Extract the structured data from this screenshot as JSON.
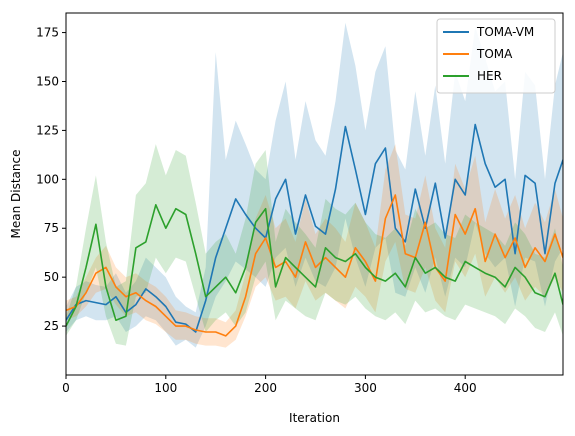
{
  "chart_data": {
    "type": "line",
    "title": "",
    "xlabel": "Iteration",
    "ylabel": "Mean Distance",
    "xlim": [
      0,
      498
    ],
    "ylim": [
      0,
      185
    ],
    "x_ticks": [
      0,
      100,
      200,
      300,
      400
    ],
    "y_ticks": [
      25,
      50,
      75,
      100,
      125,
      150,
      175
    ],
    "grid": false,
    "legend_position": "top-right",
    "series": [
      {
        "name": "TOMA-VM",
        "color": "#1f77b4",
        "x": [
          0,
          10,
          20,
          30,
          40,
          50,
          60,
          70,
          80,
          90,
          100,
          110,
          120,
          130,
          140,
          150,
          160,
          170,
          180,
          190,
          200,
          210,
          220,
          230,
          240,
          250,
          260,
          270,
          280,
          290,
          300,
          310,
          320,
          330,
          340,
          350,
          360,
          370,
          380,
          390,
          400,
          410,
          420,
          430,
          440,
          450,
          460,
          470,
          480,
          490,
          498
        ],
        "y": [
          28,
          36,
          38,
          37,
          36,
          40,
          32,
          36,
          44,
          40,
          35,
          27,
          26,
          22,
          38,
          60,
          75,
          90,
          82,
          75,
          70,
          90,
          100,
          72,
          92,
          76,
          72,
          95,
          127,
          105,
          82,
          108,
          116,
          75,
          68,
          95,
          75,
          98,
          70,
          100,
          92,
          128,
          108,
          96,
          100,
          62,
          102,
          98,
          62,
          98,
          110
        ],
        "lower": [
          22,
          28,
          30,
          28,
          28,
          30,
          22,
          25,
          30,
          28,
          22,
          15,
          18,
          14,
          25,
          40,
          48,
          58,
          54,
          50,
          45,
          60,
          65,
          45,
          60,
          48,
          45,
          55,
          80,
          60,
          45,
          65,
          70,
          42,
          40,
          55,
          42,
          60,
          40,
          60,
          55,
          78,
          62,
          55,
          60,
          35,
          60,
          58,
          35,
          58,
          65
        ],
        "upper": [
          35,
          45,
          48,
          46,
          45,
          52,
          42,
          48,
          60,
          55,
          50,
          40,
          35,
          32,
          55,
          165,
          110,
          130,
          118,
          105,
          100,
          130,
          150,
          110,
          140,
          120,
          112,
          140,
          180,
          158,
          125,
          155,
          168,
          115,
          105,
          145,
          112,
          148,
          108,
          155,
          140,
          178,
          162,
          145,
          150,
          100,
          155,
          148,
          100,
          148,
          165
        ]
      },
      {
        "name": "TOMA",
        "color": "#ff7f0e",
        "x": [
          0,
          10,
          20,
          30,
          40,
          50,
          60,
          70,
          80,
          90,
          100,
          110,
          120,
          130,
          140,
          150,
          160,
          170,
          180,
          190,
          200,
          210,
          220,
          230,
          240,
          250,
          260,
          270,
          280,
          290,
          300,
          310,
          320,
          330,
          340,
          350,
          360,
          370,
          380,
          390,
          400,
          410,
          420,
          430,
          440,
          450,
          460,
          470,
          480,
          490,
          498
        ],
        "y": [
          33,
          35,
          42,
          52,
          55,
          45,
          40,
          42,
          38,
          35,
          30,
          25,
          25,
          23,
          22,
          22,
          20,
          25,
          40,
          62,
          70,
          55,
          58,
          50,
          68,
          55,
          60,
          55,
          50,
          65,
          58,
          48,
          80,
          92,
          62,
          60,
          78,
          55,
          48,
          82,
          72,
          85,
          58,
          72,
          60,
          70,
          55,
          65,
          58,
          72,
          60
        ],
        "lower": [
          28,
          30,
          35,
          42,
          44,
          36,
          30,
          32,
          28,
          26,
          22,
          18,
          18,
          16,
          15,
          15,
          14,
          18,
          30,
          45,
          50,
          38,
          40,
          34,
          48,
          38,
          42,
          38,
          34,
          45,
          40,
          32,
          58,
          68,
          44,
          42,
          55,
          38,
          32,
          58,
          50,
          62,
          40,
          50,
          42,
          50,
          38,
          45,
          40,
          50,
          42
        ],
        "upper": [
          38,
          40,
          50,
          60,
          66,
          55,
          50,
          52,
          48,
          45,
          40,
          33,
          32,
          30,
          29,
          29,
          27,
          33,
          52,
          80,
          92,
          75,
          80,
          68,
          90,
          72,
          80,
          75,
          68,
          88,
          78,
          65,
          105,
          118,
          82,
          80,
          102,
          75,
          65,
          108,
          95,
          112,
          78,
          95,
          80,
          92,
          75,
          88,
          78,
          95,
          80
        ]
      },
      {
        "name": "HER",
        "color": "#2ca02c",
        "x": [
          0,
          10,
          20,
          30,
          40,
          50,
          60,
          70,
          80,
          90,
          100,
          110,
          120,
          130,
          140,
          150,
          160,
          170,
          180,
          190,
          200,
          210,
          220,
          230,
          240,
          250,
          260,
          270,
          280,
          290,
          300,
          310,
          320,
          330,
          340,
          350,
          360,
          370,
          380,
          390,
          400,
          410,
          420,
          430,
          440,
          450,
          460,
          470,
          480,
          490,
          498
        ],
        "y": [
          25,
          35,
          55,
          77,
          45,
          28,
          30,
          65,
          68,
          87,
          75,
          85,
          82,
          62,
          40,
          45,
          50,
          42,
          55,
          78,
          85,
          45,
          60,
          55,
          50,
          45,
          65,
          60,
          58,
          62,
          55,
          50,
          48,
          52,
          45,
          60,
          52,
          55,
          50,
          48,
          58,
          55,
          52,
          50,
          45,
          55,
          50,
          42,
          40,
          52,
          36
        ],
        "lower": [
          20,
          28,
          42,
          55,
          30,
          16,
          15,
          40,
          42,
          60,
          52,
          60,
          58,
          40,
          22,
          28,
          32,
          25,
          32,
          50,
          58,
          28,
          38,
          34,
          30,
          28,
          42,
          38,
          36,
          40,
          34,
          30,
          28,
          32,
          26,
          38,
          32,
          34,
          30,
          28,
          36,
          34,
          32,
          30,
          26,
          34,
          30,
          24,
          22,
          32,
          20
        ],
        "upper": [
          30,
          45,
          75,
          102,
          68,
          45,
          48,
          92,
          98,
          118,
          102,
          115,
          112,
          88,
          62,
          68,
          72,
          62,
          80,
          108,
          115,
          68,
          85,
          78,
          72,
          65,
          90,
          85,
          82,
          88,
          78,
          72,
          70,
          75,
          66,
          85,
          75,
          78,
          72,
          70,
          82,
          78,
          75,
          72,
          66,
          78,
          72,
          62,
          60,
          75,
          55
        ]
      }
    ]
  }
}
